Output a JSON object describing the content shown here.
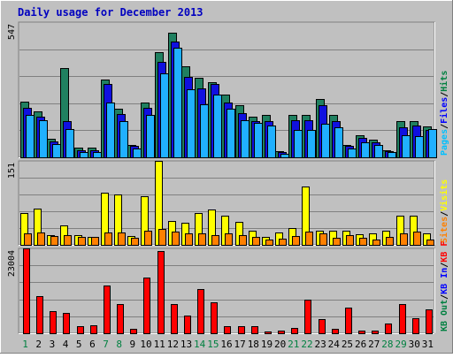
{
  "chart_data": {
    "type": "bar",
    "title": "Daily usage for December 2013",
    "days": [
      "1",
      "2",
      "3",
      "4",
      "5",
      "6",
      "7",
      "8",
      "9",
      "10",
      "11",
      "12",
      "13",
      "14",
      "15",
      "16",
      "17",
      "18",
      "19",
      "20",
      "21",
      "22",
      "23",
      "24",
      "25",
      "26",
      "27",
      "28",
      "29",
      "30",
      "31"
    ],
    "weekend_days": [
      "1",
      "7",
      "8",
      "14",
      "15",
      "21",
      "22",
      "28",
      "29"
    ],
    "panels": [
      {
        "id": "hits",
        "max_label": "547",
        "max": 547,
        "side_labels": [
          {
            "text": "Hits",
            "color": "#008040"
          },
          {
            "text": "/",
            "color": "#000000"
          },
          {
            "text": "Files",
            "color": "#0000ff"
          },
          {
            "text": "/",
            "color": "#000000"
          },
          {
            "text": "Pages",
            "color": "#00c0ff"
          }
        ],
        "series": [
          {
            "key": "hits",
            "color": "#208060",
            "values": [
              225,
              185,
              75,
              360,
              40,
              40,
              315,
              195,
              50,
              220,
              425,
              505,
              370,
              320,
              305,
              255,
              210,
              165,
              170,
              25,
              170,
              170,
              235,
              170,
              50,
              90,
              70,
              30,
              145,
              145,
              125
            ]
          },
          {
            "key": "files",
            "color": "#1010e0",
            "values": [
              200,
              165,
              65,
              145,
              28,
              30,
              295,
              175,
              45,
              200,
              385,
              470,
              325,
              280,
              295,
              220,
              180,
              145,
              145,
              20,
              150,
              150,
              210,
              145,
              45,
              80,
              60,
              25,
              120,
              130,
              110
            ]
          },
          {
            "key": "pages",
            "color": "#20b0ff",
            "values": [
              170,
              150,
              52,
              115,
              22,
              22,
              220,
              145,
              35,
              170,
              340,
              445,
              275,
              215,
              255,
              195,
              150,
              140,
              130,
              16,
              110,
              110,
              135,
              120,
              35,
              60,
              50,
              20,
              90,
              85,
              115
            ]
          }
        ]
      },
      {
        "id": "visits",
        "max_label": "151",
        "max": 151,
        "side_labels": [
          {
            "text": "Visits",
            "color": "#ffff00"
          },
          {
            "text": "/",
            "color": "#000000"
          },
          {
            "text": "Sites",
            "color": "#ff8000"
          }
        ],
        "series": [
          {
            "key": "visits",
            "color": "#ffff00",
            "values": [
              58,
              65,
              18,
              35,
              17,
              15,
              94,
              90,
              16,
              87,
              151,
              43,
              40,
              58,
              64,
              52,
              42,
              25,
              14,
              23,
              30,
              105,
              26,
              25,
              26,
              19,
              21,
              25,
              52,
              53,
              20
            ]
          },
          {
            "key": "sites",
            "color": "#ff8000",
            "values": [
              20,
              22,
              16,
              17,
              14,
              14,
              22,
              22,
              12,
              25,
              28,
              24,
              20,
              20,
              18,
              20,
              18,
              14,
              10,
              11,
              16,
              24,
              20,
              13,
              18,
              13,
              10,
              15,
              20,
              24,
              10
            ]
          }
        ]
      },
      {
        "id": "kbytes",
        "max_label": "23004",
        "max": 23004,
        "side_labels": [
          {
            "text": "KB F",
            "color": "#ff0000"
          },
          {
            "text": "/",
            "color": "#000000"
          },
          {
            "text": "KB In",
            "color": "#0000ff"
          },
          {
            "text": "/",
            "color": "#000000"
          },
          {
            "text": "KB Out",
            "color": "#008040"
          }
        ],
        "series": [
          {
            "key": "kbytes",
            "color": "#ff0000",
            "values": [
              23004,
              10100,
              5900,
              5500,
              1900,
              2200,
              13000,
              7800,
              1300,
              15200,
              22400,
              7800,
              4800,
              12000,
              8500,
              1800,
              1900,
              1800,
              400,
              700,
              1400,
              9200,
              3800,
              1200,
              6900,
              600,
              600,
              2700,
              7900,
              4100,
              6500
            ]
          }
        ]
      }
    ],
    "grid": true
  }
}
